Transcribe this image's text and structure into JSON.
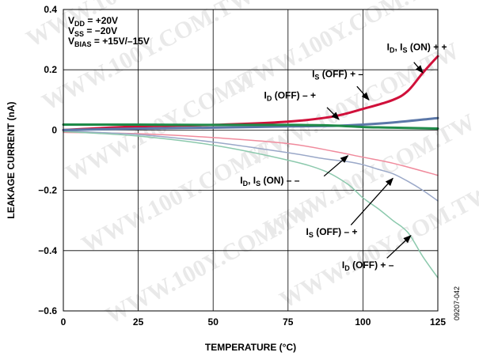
{
  "chart_data": {
    "type": "line",
    "xlabel": "TEMPERATURE (°C)",
    "ylabel": "LEAKAGE CURRENT (nA)",
    "xlim": [
      0,
      125
    ],
    "ylim": [
      -0.6,
      0.4
    ],
    "x_ticks": [
      0,
      25,
      50,
      75,
      100,
      125
    ],
    "y_ticks": [
      {
        "value": 0.4,
        "label": "0.4"
      },
      {
        "value": 0.2,
        "label": "0.2"
      },
      {
        "value": 0,
        "label": "0"
      },
      {
        "value": -0.2,
        "label": "−0.2"
      },
      {
        "value": -0.4,
        "label": "−0.4"
      },
      {
        "value": -0.6,
        "label": "−0.6"
      }
    ],
    "grid": true,
    "conditions": [
      {
        "main": "V",
        "sub": "DD",
        "rest": " = +20V"
      },
      {
        "main": "V",
        "sub": "SS",
        "rest": " = −20V"
      },
      {
        "main": "V",
        "sub": "BIAS",
        "rest": " = +15V/–15V"
      }
    ],
    "series": [
      {
        "name": "ID, IS (ON) + +",
        "color": "#d0103a",
        "width": 3,
        "x": [
          0,
          25,
          50,
          75,
          90,
          100,
          110,
          115,
          120,
          125
        ],
        "y": [
          0.0,
          0.012,
          0.017,
          0.028,
          0.045,
          0.07,
          0.1,
          0.13,
          0.19,
          0.245
        ]
      },
      {
        "name": "IS (OFF) + −",
        "color": "#5b77a8",
        "width": 3,
        "x": [
          0,
          25,
          50,
          75,
          90,
          100,
          110,
          125
        ],
        "y": [
          0.0,
          0.005,
          0.008,
          0.012,
          0.014,
          0.018,
          0.025,
          0.04
        ]
      },
      {
        "name": "ID (OFF) − +",
        "color": "#1e8a48",
        "width": 3,
        "x": [
          0,
          25,
          50,
          75,
          90,
          100,
          110,
          125
        ],
        "y": [
          0.018,
          0.018,
          0.017,
          0.017,
          0.015,
          0.01,
          0.008,
          0.005
        ]
      },
      {
        "name": "ID, IS (ON) − −",
        "color": "#f08a9c",
        "width": 1.5,
        "x": [
          0,
          25,
          50,
          75,
          90,
          100,
          110,
          125
        ],
        "y": [
          -0.008,
          -0.012,
          -0.025,
          -0.045,
          -0.07,
          -0.09,
          -0.11,
          -0.15
        ]
      },
      {
        "name": "IS (OFF) − +",
        "color": "#9aa8c8",
        "width": 1.5,
        "x": [
          0,
          25,
          50,
          75,
          87,
          95,
          100,
          105,
          110,
          115,
          120,
          125
        ],
        "y": [
          -0.003,
          -0.015,
          -0.04,
          -0.075,
          -0.095,
          -0.105,
          -0.115,
          -0.13,
          -0.145,
          -0.17,
          -0.2,
          -0.235
        ]
      },
      {
        "name": "ID (OFF) + −",
        "color": "#8cc9ad",
        "width": 1.5,
        "x": [
          0,
          25,
          50,
          75,
          87,
          95,
          100,
          105,
          110,
          115,
          120,
          125
        ],
        "y": [
          -0.005,
          -0.02,
          -0.05,
          -0.1,
          -0.135,
          -0.18,
          -0.225,
          -0.26,
          -0.3,
          -0.34,
          -0.42,
          -0.49
        ]
      }
    ],
    "annotations": [
      {
        "main": "I",
        "sub": "D",
        "rest": ", I",
        "sub2": "S",
        "rest2": " (ON) + +",
        "x": 108,
        "y": 0.265,
        "arrow": [
          [
            117,
            0.225
          ],
          [
            120,
            0.19
          ]
        ]
      },
      {
        "main": "I",
        "sub": "S",
        "rest": " (OFF) + –",
        "x": 83,
        "y": 0.175,
        "arrow": [
          [
            98,
            0.145
          ],
          [
            102,
            0.1
          ]
        ]
      },
      {
        "main": "I",
        "sub": "D",
        "rest": " (OFF) – +",
        "x": 67,
        "y": 0.105,
        "arrow": [
          [
            88,
            0.075
          ],
          [
            92,
            0.035
          ]
        ]
      },
      {
        "main": "I",
        "sub": "D",
        "rest": ", I",
        "sub2": "S",
        "rest2": " (ON) – –",
        "x": 59,
        "y": -0.178,
        "arrow": [
          [
            87,
            -0.153
          ],
          [
            95,
            -0.085
          ]
        ]
      },
      {
        "main": "I",
        "sub": "S",
        "rest": " (OFF) – +",
        "x": 81,
        "y": -0.348,
        "arrow": [
          [
            96,
            -0.315
          ],
          [
            110,
            -0.16
          ]
        ]
      },
      {
        "main": "I",
        "sub": "D",
        "rest": " (OFF) + –",
        "x": 93,
        "y": -0.458,
        "arrow": [
          [
            108,
            -0.425
          ],
          [
            116,
            -0.35
          ]
        ]
      }
    ],
    "figure_id": "09207-042"
  },
  "watermark": "WWW.100Y.COM.TW"
}
